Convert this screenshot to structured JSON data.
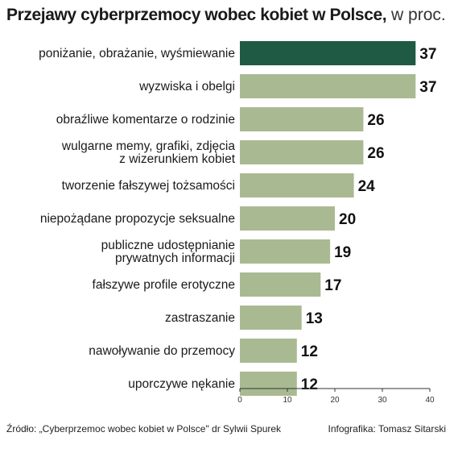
{
  "header": {
    "title": "Przejawy cyberprzemocy wobec kobiet w Polsce,",
    "unit": "w proc."
  },
  "footer": {
    "source": "Źródło: „Cyberprzemoc wobec kobiet w Polsce\" dr Sylwii Spurek",
    "credit": "Infografika: Tomasz Sitarski"
  },
  "colors": {
    "highlight": "#1e5a44",
    "bar": "#a9ba92",
    "axis": "#333333"
  },
  "chart_data": {
    "type": "bar",
    "orientation": "horizontal",
    "categories": [
      "poniżanie, obrażanie, wyśmiewanie",
      "wyzwiska i obelgi",
      "obraźliwe komentarze o rodzinie",
      "wulgarne memy, grafiki, zdjęcia\nz wizerunkiem kobiet",
      "tworzenie fałszywej tożsamości",
      "niepożądane propozycje seksualne",
      "publiczne udostępnianie\nprywatnych informacji",
      "fałszywe profile erotyczne",
      "zastraszanie",
      "nawoływanie do przemocy",
      "uporczywe nękanie"
    ],
    "values": [
      37,
      37,
      26,
      26,
      24,
      20,
      19,
      17,
      13,
      12,
      12
    ],
    "highlight_index": 0,
    "xlim": [
      0,
      40
    ],
    "ticks": [
      "0",
      "10",
      "20",
      "30",
      "40"
    ],
    "title": "Przejawy cyberprzemocy wobec kobiet w Polsce, w proc.",
    "xlabel": "",
    "ylabel": "",
    "grid": false,
    "legend": "none"
  }
}
